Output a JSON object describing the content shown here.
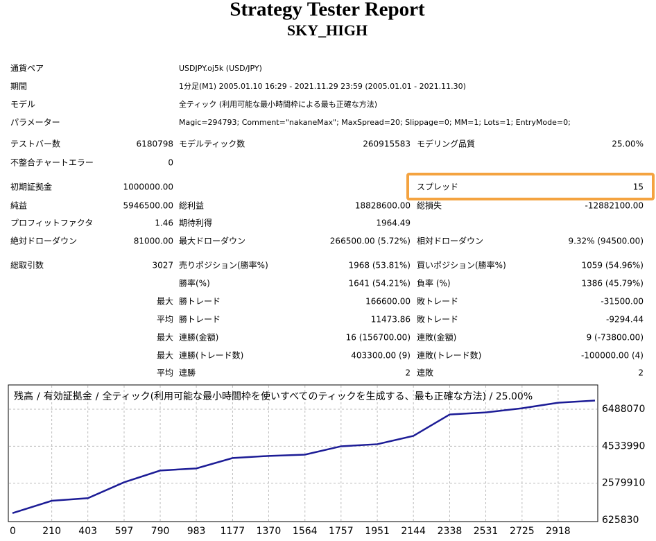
{
  "header": {
    "title": "Strategy Tester Report",
    "subtitle": "SKY_HIGH"
  },
  "info": [
    [
      "通貨ペア",
      "USDJPY.oj5k (USD/JPY)"
    ],
    [
      "期間",
      "1分足(M1) 2005.01.10 16:29 - 2021.11.29 23:59 (2005.01.01 - 2021.11.30)"
    ],
    [
      "モデル",
      "全ティック (利用可能な最小時間枠による最も正確な方法)"
    ],
    [
      "パラメーター",
      "Magic=294793; Comment=\"nakaneMax\"; MaxSpread=20; Slippage=0; MM=1; Lots=1; EntryMode=0;"
    ]
  ],
  "stats": [
    [
      "テストバー数",
      "6180798",
      "モデルティック数",
      "260915583",
      "モデリング品質",
      "25.00%"
    ],
    [
      "不整合チャートエラー",
      "0",
      null,
      null,
      null,
      null
    ],
    [
      "初期証拠金",
      "1000000.00",
      null,
      null,
      "スプレッド",
      "15"
    ],
    [
      "純益",
      "5946500.00",
      "総利益",
      "18828600.00",
      "総損失",
      "-12882100.00"
    ],
    [
      "プロフィットファクタ",
      "1.46",
      "期待利得",
      "1964.49",
      null,
      null
    ],
    [
      "絶対ドローダウン",
      "81000.00",
      "最大ドローダウン",
      "266500.00 (5.72%)",
      "相対ドローダウン",
      "9.32% (94500.00)"
    ],
    [
      "総取引数",
      "3027",
      "売りポジション(勝率%)",
      "1968 (53.81%)",
      "買いポジション(勝率%)",
      "1059 (54.96%)"
    ],
    [
      null,
      null,
      "勝率(%)",
      "1641 (54.21%)",
      "負率 (%)",
      "1386 (45.79%)"
    ],
    [
      null,
      "最大",
      "勝トレード",
      "166600.00",
      "敗トレード",
      "-31500.00"
    ],
    [
      null,
      "平均",
      "勝トレード",
      "11473.86",
      "敗トレード",
      "-9294.44"
    ],
    [
      null,
      "最大",
      "連勝(金額)",
      "16 (156700.00)",
      "連敗(金額)",
      "9 (-73800.00)"
    ],
    [
      null,
      "最大",
      "連勝(トレード数)",
      "403300.00 (9)",
      "連敗(トレード数)",
      "-100000.00 (4)"
    ],
    [
      null,
      "平均",
      "連勝",
      "2",
      "連敗",
      "2"
    ]
  ],
  "chart_data": {
    "type": "line",
    "series": [
      {
        "name": "残高",
        "color": "#1c1c96",
        "x": [
          0,
          210,
          403,
          597,
          790,
          983,
          1177,
          1370,
          1564,
          1757,
          1951,
          2144,
          2338,
          2531,
          2725,
          2918,
          3115
        ],
        "values": [
          1000000,
          1650000,
          1790000,
          2630000,
          3250000,
          3360000,
          3910000,
          4020000,
          4090000,
          4530000,
          4640000,
          5080000,
          6210000,
          6320000,
          6540000,
          6830000,
          6946500
        ]
      }
    ],
    "legend_extra": {
      "name": "有効証拠金",
      "color": "#1a9a1a"
    },
    "separator": "/",
    "caption": "全ティック(利用可能な最小時間枠を使いすべてのティックを生成する、最も正確な方法) / 25.00%",
    "xlim": [
      0,
      3115
    ],
    "xticks": [
      0,
      210,
      403,
      597,
      790,
      983,
      1177,
      1370,
      1564,
      1757,
      1951,
      2144,
      2338,
      2531,
      2725,
      2918
    ],
    "ylim": [
      625830,
      7660520
    ],
    "yticks": [
      625830,
      2579910,
      4533990,
      6488070
    ],
    "grid": true
  }
}
